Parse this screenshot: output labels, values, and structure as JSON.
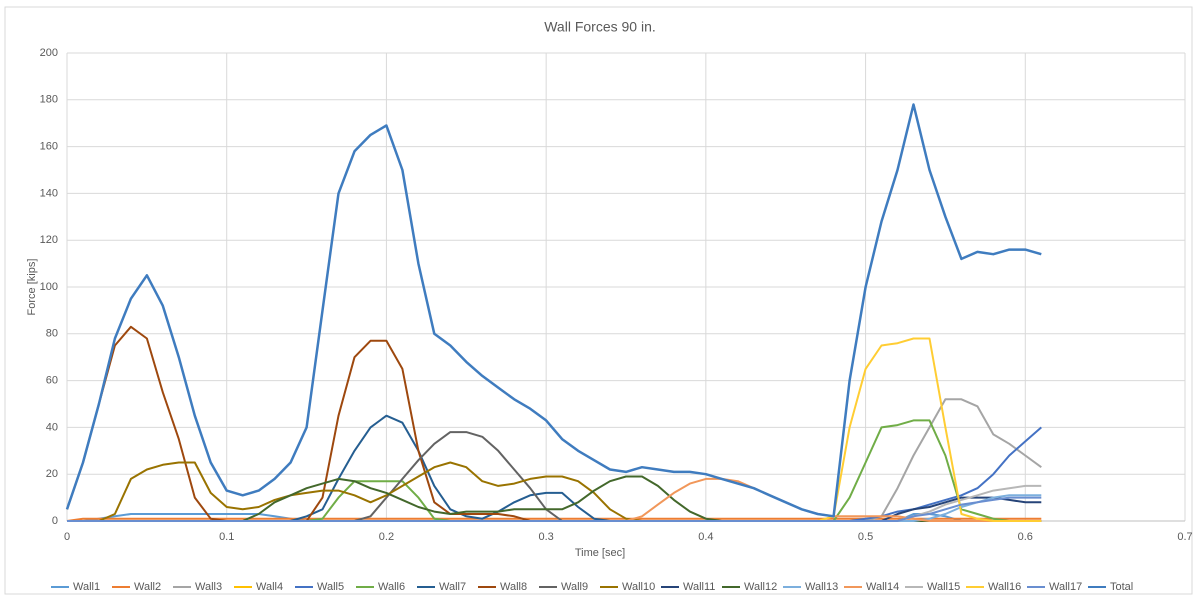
{
  "chart_data": {
    "type": "line",
    "title": "Wall Forces 90 in.",
    "x_label": "Time [sec]",
    "y_label": "Force [kips]",
    "xlim": [
      0,
      0.7
    ],
    "xticks": [
      0,
      0.1,
      0.2,
      0.3,
      0.4,
      0.5,
      0.6,
      0.7
    ],
    "ylim": [
      0,
      200
    ],
    "yticks": [
      0,
      20,
      40,
      60,
      80,
      100,
      120,
      140,
      160,
      180,
      200
    ],
    "grid": true,
    "legend": "bottom",
    "x": [
      0,
      0.01,
      0.02,
      0.03,
      0.04,
      0.05,
      0.06,
      0.07,
      0.08,
      0.09,
      0.1,
      0.11,
      0.12,
      0.13,
      0.14,
      0.15,
      0.16,
      0.17,
      0.18,
      0.19,
      0.2,
      0.21,
      0.22,
      0.23,
      0.24,
      0.25,
      0.26,
      0.27,
      0.28,
      0.29,
      0.3,
      0.31,
      0.32,
      0.33,
      0.34,
      0.35,
      0.36,
      0.37,
      0.38,
      0.39,
      0.4,
      0.41,
      0.42,
      0.43,
      0.44,
      0.45,
      0.46,
      0.47,
      0.48,
      0.49,
      0.5,
      0.51,
      0.52,
      0.53,
      0.54,
      0.55,
      0.56,
      0.57,
      0.58,
      0.59,
      0.6,
      0.61
    ],
    "series": [
      {
        "name": "Wall1",
        "color": "#5b9bd5",
        "values": [
          0,
          0,
          1,
          2,
          3,
          3,
          3,
          3,
          3,
          3,
          3,
          3,
          3,
          2,
          1,
          0,
          0,
          0,
          0,
          0,
          0,
          0,
          0,
          0,
          0,
          0,
          0,
          0,
          0,
          0,
          0,
          0,
          0,
          0,
          0,
          0,
          0,
          0,
          0,
          0,
          0,
          0,
          0,
          0,
          0,
          0,
          0,
          0,
          0,
          0,
          0,
          0,
          0,
          3,
          3,
          2,
          0,
          0,
          0,
          0,
          0,
          0
        ]
      },
      {
        "name": "Wall2",
        "color": "#ed7d31",
        "values": [
          0,
          1,
          1,
          1,
          1,
          1,
          1,
          1,
          1,
          1,
          1,
          1,
          1,
          1,
          1,
          1,
          1,
          1,
          1,
          1,
          1,
          1,
          1,
          1,
          1,
          1,
          1,
          1,
          1,
          1,
          1,
          1,
          1,
          1,
          1,
          1,
          1,
          1,
          1,
          1,
          1,
          1,
          1,
          1,
          1,
          1,
          1,
          1,
          1,
          1,
          1,
          1,
          1,
          1,
          1,
          1,
          1,
          1,
          1,
          1,
          1,
          1
        ]
      },
      {
        "name": "Wall3",
        "color": "#a5a5a5",
        "values": [
          0,
          0,
          0,
          0,
          0,
          0,
          0,
          0,
          0,
          0,
          0,
          0,
          0,
          0,
          0,
          0,
          0,
          0,
          0,
          0,
          0,
          0,
          0,
          0,
          0,
          0,
          0,
          0,
          0,
          0,
          0,
          0,
          0,
          0,
          0,
          0,
          0,
          0,
          0,
          0,
          0,
          0,
          0,
          0,
          0,
          0,
          0,
          0,
          0,
          0,
          0,
          2,
          14,
          28,
          40,
          52,
          52,
          49,
          37,
          33,
          28,
          23
        ]
      },
      {
        "name": "Wall4",
        "color": "#ffc000",
        "values": [
          0,
          0,
          0,
          0,
          0,
          0,
          0,
          0,
          0,
          0,
          0,
          0,
          0,
          0,
          0,
          0,
          0,
          0,
          0,
          0,
          0,
          0,
          0,
          0,
          0,
          0,
          0,
          0,
          0,
          0,
          0,
          0,
          0,
          0,
          0,
          0,
          0,
          0,
          0,
          0,
          0,
          0,
          0,
          0,
          0,
          0,
          0,
          0,
          0,
          0,
          0,
          0,
          0,
          0,
          0,
          0,
          0,
          0,
          0,
          0,
          0,
          0
        ]
      },
      {
        "name": "Wall5",
        "color": "#4472c4",
        "values": [
          0,
          0,
          0,
          0,
          0,
          0,
          0,
          0,
          0,
          0,
          0,
          0,
          0,
          0,
          0,
          0,
          0,
          0,
          0,
          0,
          0,
          0,
          0,
          0,
          0,
          0,
          0,
          0,
          0,
          0,
          0,
          0,
          0,
          0,
          0,
          0,
          0,
          0,
          0,
          0,
          0,
          0,
          0,
          0,
          0,
          0,
          0,
          0,
          0,
          0,
          1,
          2,
          4,
          5,
          7,
          9,
          11,
          14,
          20,
          28,
          34,
          40
        ]
      },
      {
        "name": "Wall6",
        "color": "#70ad47",
        "values": [
          0,
          0,
          0,
          0,
          0,
          0,
          0,
          0,
          0,
          0,
          0,
          0,
          0,
          0,
          0,
          0,
          1,
          10,
          17,
          17,
          17,
          17,
          10,
          1,
          0,
          0,
          0,
          0,
          0,
          0,
          0,
          0,
          0,
          0,
          0,
          0,
          0,
          0,
          0,
          0,
          0,
          0,
          0,
          0,
          0,
          0,
          0,
          0,
          0,
          10,
          25,
          40,
          41,
          43,
          43,
          28,
          5,
          3,
          1,
          0,
          0,
          0
        ]
      },
      {
        "name": "Wall7",
        "color": "#255e91",
        "values": [
          0,
          0,
          0,
          0,
          0,
          0,
          0,
          0,
          0,
          0,
          0,
          0,
          0,
          0,
          0,
          2,
          5,
          18,
          30,
          40,
          45,
          42,
          30,
          15,
          5,
          2,
          1,
          4,
          8,
          11,
          12,
          12,
          6,
          1,
          0,
          0,
          0,
          0,
          0,
          0,
          0,
          0,
          0,
          0,
          0,
          0,
          0,
          0,
          0,
          0,
          0,
          0,
          0,
          0,
          0,
          0,
          0,
          0,
          0,
          0,
          0,
          0
        ]
      },
      {
        "name": "Wall8",
        "color": "#9e480e",
        "values": [
          5,
          25,
          50,
          75,
          83,
          78,
          55,
          35,
          10,
          1,
          0,
          0,
          0,
          0,
          0,
          0,
          10,
          45,
          70,
          77,
          77,
          65,
          30,
          8,
          3,
          3,
          3,
          3,
          2,
          0,
          0,
          0,
          0,
          0,
          0,
          0,
          0,
          0,
          0,
          0,
          0,
          0,
          0,
          0,
          0,
          0,
          0,
          0,
          0,
          0,
          0,
          0,
          0,
          0,
          0,
          0,
          0,
          0,
          0,
          0,
          0,
          0
        ]
      },
      {
        "name": "Wall9",
        "color": "#636363",
        "values": [
          0,
          0,
          0,
          0,
          0,
          0,
          0,
          0,
          0,
          0,
          0,
          0,
          0,
          0,
          0,
          0,
          0,
          0,
          0,
          2,
          10,
          18,
          26,
          33,
          38,
          38,
          36,
          30,
          22,
          14,
          5,
          0,
          0,
          0,
          0,
          0,
          0,
          0,
          0,
          0,
          0,
          0,
          0,
          0,
          0,
          0,
          0,
          0,
          0,
          0,
          0,
          0,
          0,
          0,
          0,
          0,
          0,
          0,
          0,
          0,
          0,
          0
        ]
      },
      {
        "name": "Wall10",
        "color": "#997300",
        "values": [
          0,
          0,
          0,
          3,
          18,
          22,
          24,
          25,
          25,
          12,
          6,
          5,
          6,
          9,
          11,
          12,
          13,
          13,
          11,
          8,
          11,
          15,
          19,
          23,
          25,
          23,
          17,
          15,
          16,
          18,
          19,
          19,
          17,
          12,
          5,
          1,
          0,
          0,
          0,
          0,
          0,
          0,
          0,
          0,
          0,
          0,
          0,
          0,
          0,
          0,
          0,
          0,
          0,
          0,
          0,
          0,
          0,
          0,
          0,
          0,
          0,
          0
        ]
      },
      {
        "name": "Wall11",
        "color": "#264478",
        "values": [
          0,
          0,
          0,
          0,
          0,
          0,
          0,
          0,
          0,
          0,
          0,
          0,
          0,
          0,
          0,
          0,
          0,
          0,
          0,
          0,
          0,
          0,
          0,
          0,
          0,
          0,
          0,
          0,
          0,
          0,
          0,
          0,
          0,
          0,
          0,
          0,
          0,
          0,
          0,
          0,
          0,
          0,
          0,
          0,
          0,
          0,
          0,
          0,
          0,
          0,
          0,
          0,
          3,
          5,
          6,
          8,
          10,
          10,
          10,
          9,
          8,
          8
        ]
      },
      {
        "name": "Wall12",
        "color": "#43682b",
        "values": [
          0,
          0,
          0,
          0,
          0,
          0,
          0,
          0,
          0,
          0,
          0,
          0,
          3,
          8,
          11,
          14,
          16,
          18,
          17,
          14,
          12,
          9,
          6,
          4,
          3,
          4,
          4,
          4,
          5,
          5,
          5,
          5,
          8,
          13,
          17,
          19,
          19,
          15,
          9,
          4,
          1,
          0,
          0,
          0,
          0,
          0,
          0,
          0,
          0,
          0,
          0,
          0,
          0,
          0,
          0,
          0,
          0,
          0,
          0,
          0,
          0,
          0
        ]
      },
      {
        "name": "Wall13",
        "color": "#7cafdd",
        "values": [
          0,
          0,
          0,
          0,
          0,
          0,
          0,
          0,
          0,
          0,
          0,
          0,
          0,
          0,
          0,
          0,
          0,
          0,
          0,
          0,
          0,
          0,
          0,
          0,
          0,
          0,
          0,
          0,
          0,
          0,
          0,
          0,
          0,
          0,
          0,
          0,
          0,
          0,
          0,
          0,
          0,
          0,
          0,
          0,
          0,
          0,
          0,
          0,
          0,
          0,
          0,
          0,
          0,
          0,
          1,
          3,
          6,
          8,
          10,
          11,
          11,
          11
        ]
      },
      {
        "name": "Wall14",
        "color": "#f1975a",
        "values": [
          0,
          0,
          0,
          0,
          0,
          0,
          0,
          0,
          0,
          0,
          0,
          0,
          0,
          0,
          0,
          0,
          0,
          0,
          0,
          0,
          0,
          0,
          0,
          0,
          0,
          0,
          0,
          0,
          0,
          0,
          0,
          0,
          0,
          0,
          0,
          0,
          2,
          7,
          12,
          16,
          18,
          18,
          17,
          14,
          11,
          8,
          5,
          3,
          2,
          2,
          2,
          2,
          2,
          1,
          0,
          0,
          0,
          0,
          0,
          0,
          0,
          0
        ]
      },
      {
        "name": "Wall15",
        "color": "#b7b7b7",
        "values": [
          0,
          0,
          0,
          0,
          0,
          0,
          0,
          0,
          0,
          0,
          0,
          0,
          0,
          0,
          0,
          0,
          0,
          0,
          0,
          0,
          0,
          0,
          0,
          0,
          0,
          0,
          0,
          0,
          0,
          0,
          0,
          0,
          0,
          0,
          0,
          0,
          0,
          0,
          0,
          0,
          0,
          0,
          0,
          0,
          0,
          0,
          0,
          0,
          0,
          0,
          0,
          0,
          0,
          2,
          4,
          7,
          9,
          11,
          13,
          14,
          15,
          15
        ]
      },
      {
        "name": "Wall16",
        "color": "#ffcd33",
        "values": [
          0,
          0,
          0,
          0,
          0,
          0,
          0,
          0,
          0,
          0,
          0,
          0,
          0,
          0,
          0,
          0,
          0,
          0,
          0,
          0,
          0,
          0,
          0,
          0,
          0,
          0,
          0,
          0,
          0,
          0,
          0,
          0,
          0,
          0,
          0,
          0,
          0,
          0,
          0,
          0,
          0,
          0,
          0,
          0,
          0,
          0,
          0,
          0,
          2,
          40,
          65,
          75,
          76,
          78,
          78,
          40,
          3,
          1,
          0,
          0,
          0,
          0
        ]
      },
      {
        "name": "Wall17",
        "color": "#698ed0",
        "values": [
          0,
          0,
          0,
          0,
          0,
          0,
          0,
          0,
          0,
          0,
          0,
          0,
          0,
          0,
          0,
          0,
          0,
          0,
          0,
          0,
          0,
          0,
          0,
          0,
          0,
          0,
          0,
          0,
          0,
          0,
          0,
          0,
          0,
          0,
          0,
          0,
          0,
          0,
          0,
          0,
          0,
          0,
          0,
          0,
          0,
          0,
          0,
          0,
          0,
          0,
          0,
          0,
          0,
          2,
          3,
          5,
          7,
          8,
          9,
          10,
          10,
          10
        ]
      },
      {
        "name": "Total",
        "color": "#3f7cbf",
        "values": [
          5,
          25,
          50,
          78,
          95,
          105,
          92,
          70,
          45,
          25,
          13,
          11,
          13,
          18,
          25,
          40,
          90,
          140,
          158,
          165,
          169,
          150,
          110,
          80,
          75,
          68,
          62,
          57,
          52,
          48,
          43,
          35,
          30,
          26,
          22,
          21,
          23,
          22,
          21,
          21,
          20,
          18,
          16,
          14,
          11,
          8,
          5,
          3,
          2,
          60,
          100,
          128,
          150,
          178,
          150,
          130,
          112,
          115,
          114,
          116,
          116,
          114
        ]
      }
    ]
  }
}
